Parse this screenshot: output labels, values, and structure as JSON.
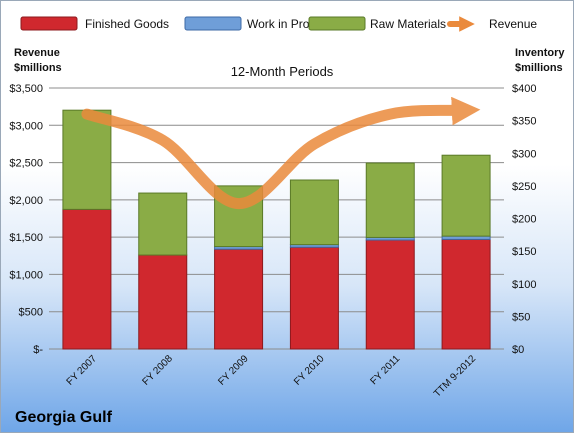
{
  "chart_data": {
    "type": "bar",
    "stacked": true,
    "title": "Georgia Gulf",
    "subtitle": "12-Month Periods",
    "categories": [
      "FY 2007",
      "FY 2008",
      "FY 2009",
      "FY 2010",
      "FY 2011",
      "TTM 9-2012"
    ],
    "y_left": {
      "label_line1": "Revenue",
      "label_line2": "$millions",
      "ylim": [
        0,
        3500
      ],
      "ticks": [
        "$-",
        "$500",
        "$1,000",
        "$1,500",
        "$2,000",
        "$2,500",
        "$3,000",
        "$3,500"
      ]
    },
    "y_right": {
      "label_line1": "Inventory",
      "label_line2": "$millions",
      "ylim": [
        0,
        400
      ],
      "ticks": [
        "$0",
        "$50",
        "$100",
        "$150",
        "$200",
        "$250",
        "$300",
        "$350",
        "$400"
      ]
    },
    "grid": true,
    "legend_position": "top",
    "series": [
      {
        "name": "Finished Goods",
        "axis": "right",
        "kind": "bar",
        "color": "#d0282e",
        "values": [
          214,
          144,
          153,
          156,
          167,
          168
        ]
      },
      {
        "name": "Work in Progress",
        "axis": "right",
        "kind": "bar",
        "color": "#6f9ed8",
        "values": [
          0,
          0,
          4,
          4,
          4,
          5
        ]
      },
      {
        "name": "Raw Materials",
        "axis": "right",
        "kind": "bar",
        "color": "#8aac46",
        "values": [
          152,
          95,
          93,
          99,
          114,
          124
        ]
      },
      {
        "name": "Revenue",
        "axis": "left",
        "kind": "line",
        "color": "#ea8a3c",
        "values": [
          3150,
          2800,
          1950,
          2750,
          3150,
          3200
        ]
      }
    ]
  }
}
